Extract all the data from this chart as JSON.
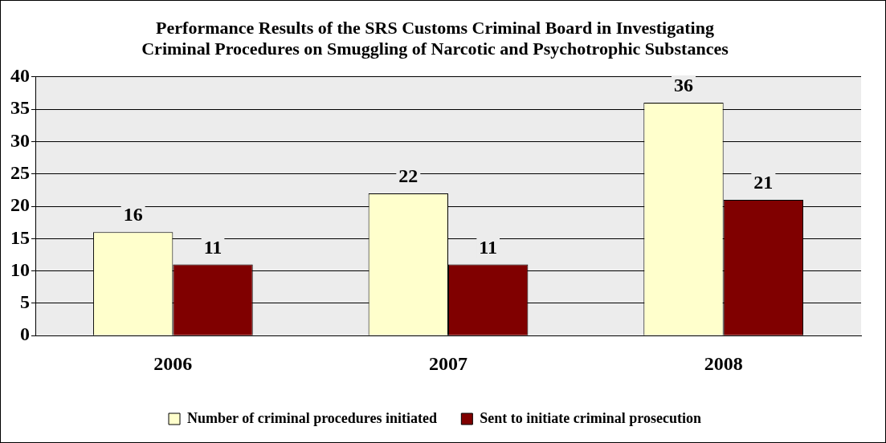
{
  "chart_data": {
    "type": "bar",
    "title": "Performance Results of the SRS Customs Criminal Board in Investigating Criminal Procedures on Smuggling of Narcotic and Psychotrophic Substances",
    "categories": [
      "2006",
      "2007",
      "2008"
    ],
    "series": [
      {
        "name": "Number of criminal procedures initiated",
        "color": "#ffffcc",
        "values": [
          16,
          22,
          36
        ]
      },
      {
        "name": "Sent to initiate criminal prosecution",
        "color": "#800000",
        "values": [
          11,
          11,
          21
        ]
      }
    ],
    "ylim": [
      0,
      40
    ],
    "yticks": [
      0,
      5,
      10,
      15,
      20,
      25,
      30,
      35,
      40
    ],
    "grid": "y",
    "legend": "bottom",
    "data_labels": true
  }
}
